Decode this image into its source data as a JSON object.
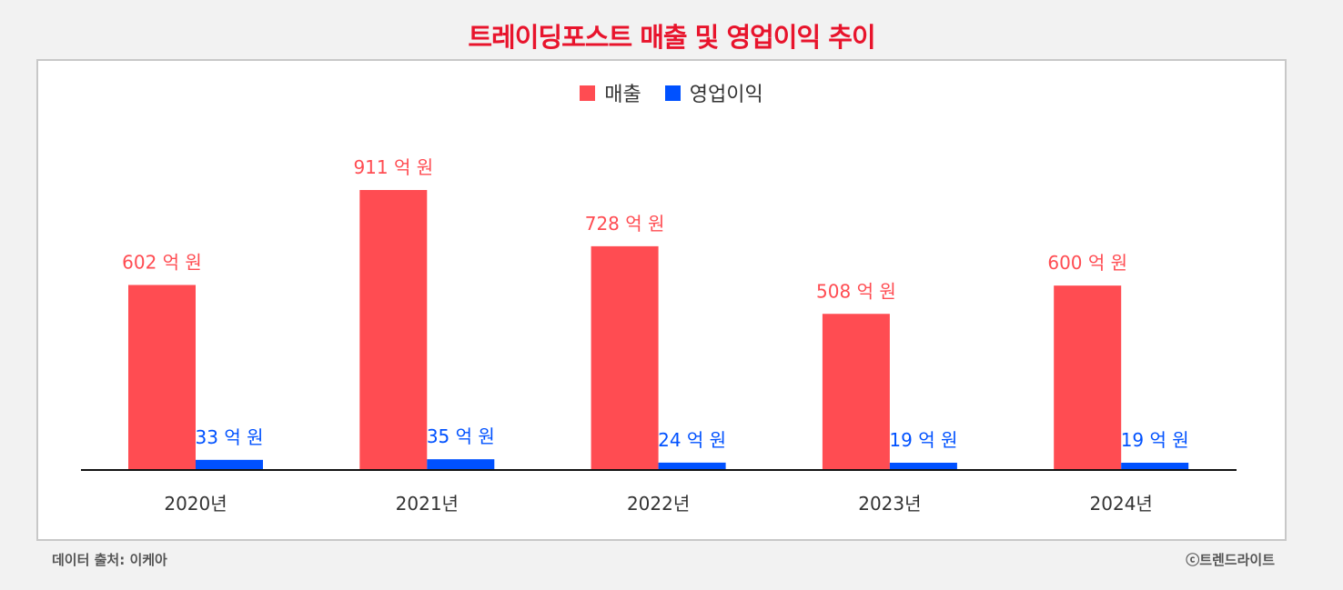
{
  "title": "트레이딩포스트 매출 및 영업이익 추이",
  "footer": {
    "source": "데이터 출처: 이케아",
    "copyright": "ⓒ트렌드라이트"
  },
  "colors": {
    "revenue": "#ff4c52",
    "operating_profit": "#0051ff",
    "title": "#e8142c"
  },
  "chart_data": {
    "type": "bar",
    "title": "트레이딩포스트 매출 및 영업이익 추이",
    "xlabel": "",
    "ylabel": "",
    "categories": [
      "2020년",
      "2021년",
      "2022년",
      "2023년",
      "2024년"
    ],
    "series": [
      {
        "name": "매출",
        "values": [
          602,
          911,
          728,
          508,
          600
        ],
        "labels": [
          "602 억 원",
          "911 억 원",
          "728 억 원",
          "508 억 원",
          "600 억 원"
        ]
      },
      {
        "name": "영업이익",
        "values": [
          33,
          35,
          24,
          19,
          19
        ],
        "labels": [
          "33 억 원",
          "35 억 원",
          "24 억 원",
          "19 억 원",
          "19 억 원"
        ]
      }
    ],
    "ylim": [
      0,
      911
    ],
    "grid": false,
    "legend": "top-center"
  }
}
